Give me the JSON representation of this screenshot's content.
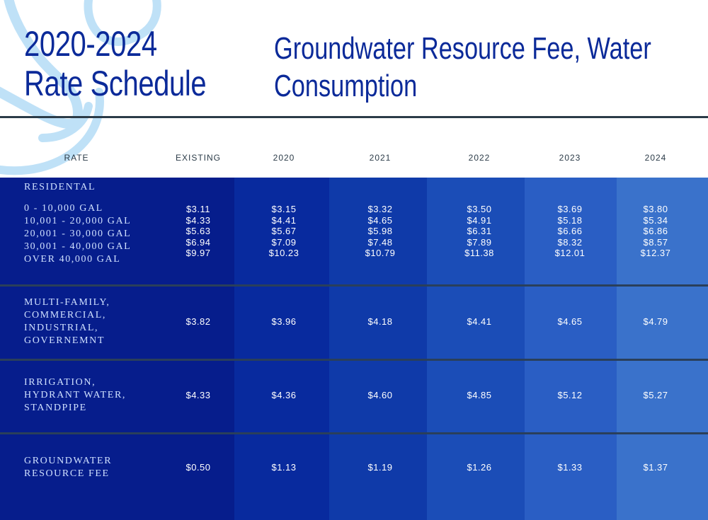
{
  "header": {
    "title_left": [
      "2020-2024",
      "Rate Schedule"
    ],
    "title_right": [
      "Groundwater Resource Fee, Water",
      "Consumption"
    ]
  },
  "table": {
    "columns": [
      "RATE",
      "EXISTING",
      "2020",
      "2021",
      "2022",
      "2023",
      "2024"
    ],
    "column_colors": [
      "#061d8c",
      "#082a9e",
      "#0f3aa9",
      "#1b4db7",
      "#2a5ec4",
      "#3a72cb"
    ],
    "rows": [
      {
        "label_lines": [
          "RESIDENTAL",
          "",
          "0 - 10,000 GAL",
          "10,001 - 20,000 GAL",
          "20,001 - 30,000 GAL",
          "30,001 - 40,000 GAL",
          "OVER 40,000 GAL"
        ],
        "values": [
          [
            "$3.11",
            "$4.33",
            "$5.63",
            "$6.94",
            "$9.97"
          ],
          [
            "$3.15",
            "$4.41",
            "$5.67",
            "$7.09",
            "$10.23"
          ],
          [
            "$3.32",
            "$4.65",
            "$5.98",
            "$7.48",
            "$10.79"
          ],
          [
            "$3.50",
            "$4.91",
            "$6.31",
            "$7.89",
            "$11.38"
          ],
          [
            "$3.69",
            "$5.18",
            "$6.66",
            "$8.32",
            "$12.01"
          ],
          [
            "$3.80",
            "$5.34",
            "$6.86",
            "$8.57",
            "$12.37"
          ]
        ]
      },
      {
        "label_lines": [
          "MULTI-FAMILY,",
          "COMMERCIAL,",
          "INDUSTRIAL,",
          "GOVERNEMNT"
        ],
        "values": [
          [
            "$3.82"
          ],
          [
            "$3.96"
          ],
          [
            "$4.18"
          ],
          [
            "$4.41"
          ],
          [
            "$4.65"
          ],
          [
            "$4.79"
          ]
        ]
      },
      {
        "label_lines": [
          "IRRIGATION,",
          "HYDRANT WATER,",
          "STANDPIPE"
        ],
        "values": [
          [
            "$4.33"
          ],
          [
            "$4.36"
          ],
          [
            "$4.60"
          ],
          [
            "$4.85"
          ],
          [
            "$5.12"
          ],
          [
            "$5.27"
          ]
        ]
      },
      {
        "label_lines": [
          "GROUNDWATER",
          "RESOURCE FEE"
        ],
        "values": [
          [
            "$0.50"
          ],
          [
            "$1.13"
          ],
          [
            "$1.19"
          ],
          [
            "$1.26"
          ],
          [
            "$1.33"
          ],
          [
            "$1.37"
          ]
        ]
      }
    ]
  }
}
